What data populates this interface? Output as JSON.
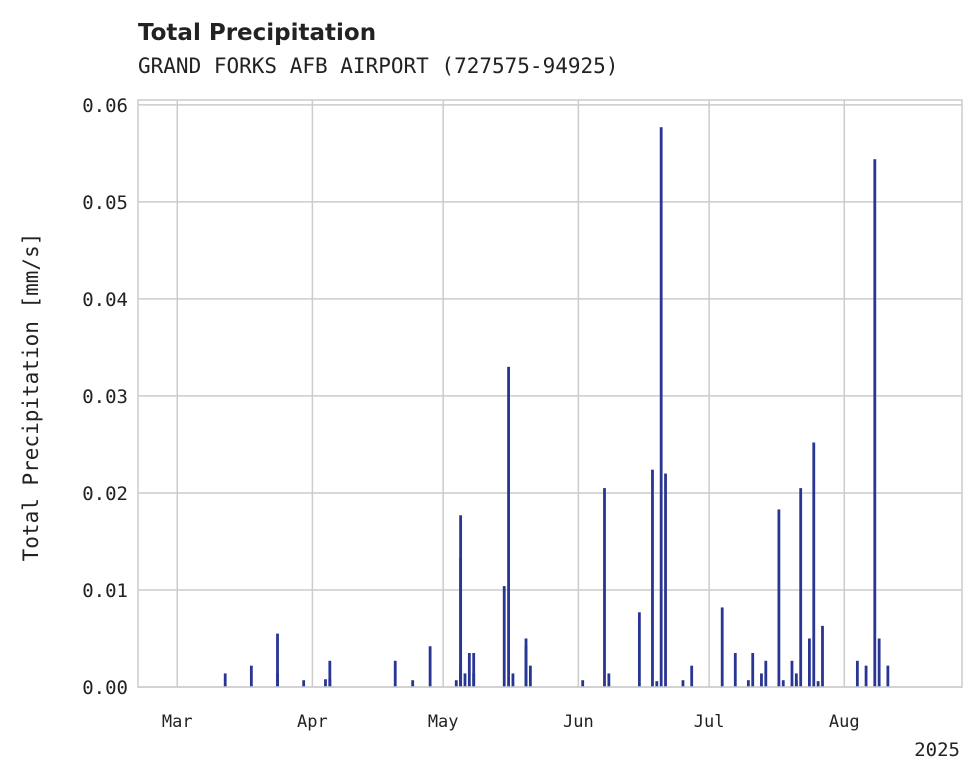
{
  "chart_data": {
    "type": "bar",
    "title": "Total Precipitation",
    "subtitle": "GRAND FORKS AFB AIRPORT (727575-94925)",
    "ylabel": "Total Precipitation [mm/s]",
    "xlabel": "",
    "x_year_label": "2025",
    "xlim": [
      "2025-02-20",
      "2025-08-28"
    ],
    "ylim": [
      0,
      0.0605
    ],
    "yticks": [
      0,
      0.01,
      0.02,
      0.03,
      0.04,
      0.05,
      0.06
    ],
    "ytick_labels": [
      "0.00",
      "0.01",
      "0.02",
      "0.03",
      "0.04",
      "0.05",
      "0.06"
    ],
    "xticks": [
      "2025-03-01",
      "2025-04-01",
      "2025-05-01",
      "2025-06-01",
      "2025-07-01",
      "2025-08-01"
    ],
    "xtick_labels": [
      "Mar",
      "Apr",
      "May",
      "Jun",
      "Jul",
      "Aug"
    ],
    "grid": true,
    "legend": "none",
    "color": "#283593",
    "series": [
      {
        "x": [
          "2025-03-12",
          "2025-03-18",
          "2025-03-24",
          "2025-03-24",
          "2025-03-30",
          "2025-04-04",
          "2025-04-05",
          "2025-04-05",
          "2025-04-20",
          "2025-04-24",
          "2025-04-28",
          "2025-05-04",
          "2025-05-05",
          "2025-05-05",
          "2025-05-05",
          "2025-05-06",
          "2025-05-07",
          "2025-05-08",
          "2025-05-08",
          "2025-05-15",
          "2025-05-16",
          "2025-05-17",
          "2025-05-20",
          "2025-05-20",
          "2025-05-21",
          "2025-06-02",
          "2025-06-07",
          "2025-06-08",
          "2025-06-15",
          "2025-06-18",
          "2025-06-19",
          "2025-06-20",
          "2025-06-21",
          "2025-06-25",
          "2025-06-27",
          "2025-07-04",
          "2025-07-07",
          "2025-07-10",
          "2025-07-11",
          "2025-07-13",
          "2025-07-14",
          "2025-07-17",
          "2025-07-18",
          "2025-07-20",
          "2025-07-21",
          "2025-07-21",
          "2025-07-22",
          "2025-07-24",
          "2025-07-25",
          "2025-07-26",
          "2025-07-27",
          "2025-08-04",
          "2025-08-06",
          "2025-08-08",
          "2025-08-09",
          "2025-08-11"
        ],
        "values": [
          0.0014,
          0.0022,
          0.0055,
          0.0014,
          0.0007,
          0.0008,
          0.0027,
          0.0008,
          0.0027,
          0.0007,
          0.0042,
          0.0007,
          0.0133,
          0.0177,
          0.0022,
          0.0014,
          0.0035,
          0.0035,
          0.0014,
          0.0104,
          0.033,
          0.0014,
          0.005,
          0.0042,
          0.0022,
          0.0007,
          0.0205,
          0.0014,
          0.0077,
          0.0224,
          0.0006,
          0.0577,
          0.022,
          0.0007,
          0.0022,
          0.0082,
          0.0035,
          0.0007,
          0.0035,
          0.0014,
          0.0027,
          0.0183,
          0.0007,
          0.0027,
          0.0007,
          0.0014,
          0.0205,
          0.005,
          0.0252,
          0.0006,
          0.0063,
          0.0027,
          0.0022,
          0.0544,
          0.005,
          0.0022
        ]
      }
    ]
  }
}
